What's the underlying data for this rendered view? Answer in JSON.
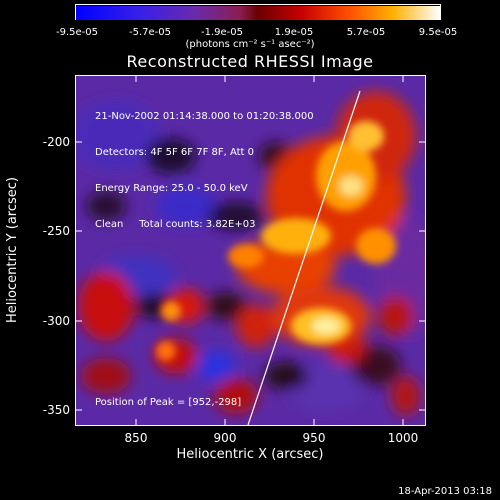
{
  "colorbar": {
    "ticks": [
      "-9.5e-05",
      "-5.7e-05",
      "-1.9e-05",
      "1.9e-05",
      "5.7e-05",
      "9.5e-05"
    ],
    "unit_label": "(photons cm⁻² s⁻¹ asec⁻²)",
    "range": [
      -9.5e-05,
      9.5e-05
    ]
  },
  "title": "Reconstructed RHESSI Image",
  "info": {
    "line1": "21-Nov-2002 01:14:38.000 to 01:20:38.000",
    "line2": "Detectors: 4F 5F 6F 7F 8F, Att 0",
    "line3": "Energy Range: 25.0 - 50.0 keV",
    "line4": "Clean     Total counts: 3.82E+03"
  },
  "peak_label": "Position of Peak = [952,-298]",
  "x_axis": {
    "label": "Heliocentric X (arcsec)",
    "ticks": [
      "850",
      "900",
      "950",
      "1000"
    ],
    "range": [
      815,
      1020
    ]
  },
  "y_axis": {
    "label": "Heliocentric Y (arcsec)",
    "ticks": [
      "-200",
      "-250",
      "-300",
      "-350"
    ],
    "range": [
      -355,
      -160
    ]
  },
  "timestamp": "18-Apr-2013 03:18",
  "chart_data": {
    "type": "heatmap",
    "title": "Reconstructed RHESSI Image",
    "xlabel": "Heliocentric X (arcsec)",
    "ylabel": "Heliocentric Y (arcsec)",
    "xlim": [
      815,
      1020
    ],
    "ylim": [
      -355,
      -160
    ],
    "colorbar_range": [
      -9.5e-05,
      9.5e-05
    ],
    "peak": {
      "x": 952,
      "y": -298
    },
    "limb_line": true
  }
}
